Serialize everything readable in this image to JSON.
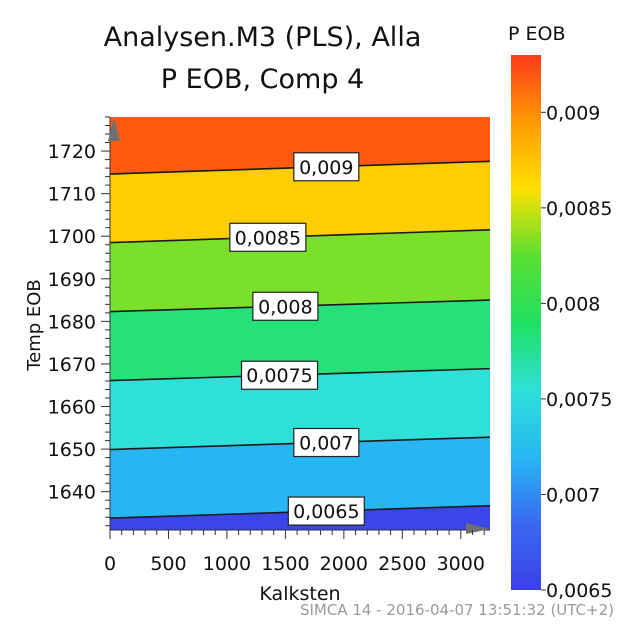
{
  "chart_data": {
    "type": "contour",
    "title": "Analysen.M3 (PLS), Alla",
    "subtitle": "P EOB, Comp 4",
    "xlabel": "Kalksten",
    "ylabel": "Temp EOB",
    "xlim": [
      0,
      3250
    ],
    "ylim": [
      1631,
      1728
    ],
    "x_ticks": [
      "0",
      "500",
      "1000",
      "1500",
      "2000",
      "2500",
      "3000"
    ],
    "y_ticks": [
      "1640",
      "1650",
      "1660",
      "1670",
      "1680",
      "1690",
      "1700",
      "1710",
      "1720"
    ],
    "colorbar": {
      "title": "P EOB",
      "range": [
        0.0065,
        0.0093
      ],
      "ticks": [
        "0,009",
        "0,0085",
        "0,008",
        "0,0075",
        "0,007",
        "0,0065"
      ],
      "stops": [
        "#ff3a1a",
        "#ff9a00",
        "#ffe000",
        "#5ae030",
        "#20e060",
        "#2ee0d8",
        "#27b8f2",
        "#3a6af0",
        "#3a40e8"
      ]
    },
    "contours": [
      {
        "label": "0,009",
        "value": 0.009,
        "y_at_x0": 1714.6,
        "y_at_xmax": 1717.6,
        "label_x": 1850,
        "color": "#ff5a10"
      },
      {
        "label": "0,0085",
        "value": 0.0085,
        "y_at_x0": 1698.5,
        "y_at_xmax": 1701.5,
        "label_x": 1350,
        "color": "#ffce00"
      },
      {
        "label": "0,008",
        "value": 0.008,
        "y_at_x0": 1682.3,
        "y_at_xmax": 1685.0,
        "label_x": 1500,
        "color": "#7ae02a"
      },
      {
        "label": "0,0075",
        "value": 0.0075,
        "y_at_x0": 1666.1,
        "y_at_xmax": 1668.9,
        "label_x": 1450,
        "color": "#26e07a"
      },
      {
        "label": "0,007",
        "value": 0.007,
        "y_at_x0": 1649.9,
        "y_at_xmax": 1652.8,
        "label_x": 1850,
        "color": "#2ee0d8"
      },
      {
        "label": "0,0065",
        "value": 0.0065,
        "y_at_x0": 1633.8,
        "y_at_xmax": 1636.7,
        "label_x": 1850,
        "color": "#28b6f2"
      }
    ],
    "below_lowest_color": "#3a46e8",
    "grid": false,
    "legend": "colorbar-right"
  },
  "footer": "SIMCA 14 - 2016-04-07 13:51:32 (UTC+2)"
}
